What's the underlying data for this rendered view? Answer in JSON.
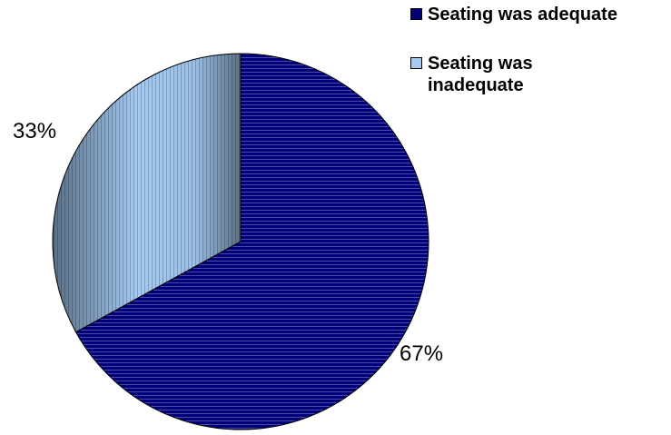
{
  "chart_data": {
    "type": "pie",
    "title": "",
    "series": [
      {
        "values": [
          67,
          33
        ],
        "labels": [
          "Seating was adequate",
          "Seating was inadequate"
        ],
        "data_labels": [
          "67%",
          "33%"
        ],
        "colors": [
          "#00007a",
          "#a6caf0"
        ],
        "pattern": [
          "horizontal-stripes",
          "vertical-stripes"
        ]
      }
    ],
    "start_angle_deg": 0,
    "direction": "clockwise",
    "legend_position": "top-right"
  }
}
